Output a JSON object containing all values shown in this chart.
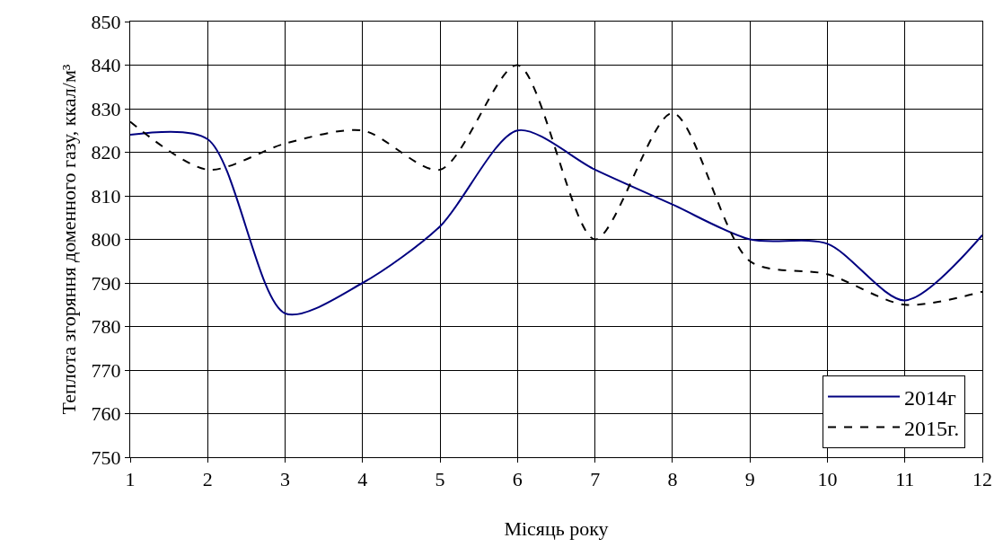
{
  "chart_data": {
    "type": "line",
    "xlabel": "Місяць року",
    "ylabel": "Теплота згоряння доменного газу, ккал/м³",
    "x": [
      1,
      2,
      3,
      4,
      5,
      6,
      7,
      8,
      9,
      10,
      11,
      12
    ],
    "xlim": [
      1,
      12
    ],
    "xticks": [
      1,
      2,
      3,
      4,
      5,
      6,
      7,
      8,
      9,
      10,
      11,
      12
    ],
    "ylim": [
      750,
      850
    ],
    "yticks": [
      750,
      760,
      770,
      780,
      790,
      800,
      810,
      820,
      830,
      840,
      850
    ],
    "grid": true,
    "legend": "bottom right",
    "marker": "none",
    "series": [
      {
        "name": "2014г",
        "color": "#000080",
        "line_style": "solid",
        "values": [
          824,
          823,
          783,
          790,
          803,
          825,
          816,
          808,
          800,
          799,
          786,
          801
        ]
      },
      {
        "name": "2015г.",
        "color": "#000000",
        "line_style": "dashed",
        "values": [
          827,
          816,
          822,
          825,
          816,
          840,
          800,
          829,
          795,
          792,
          785,
          788
        ]
      }
    ]
  }
}
